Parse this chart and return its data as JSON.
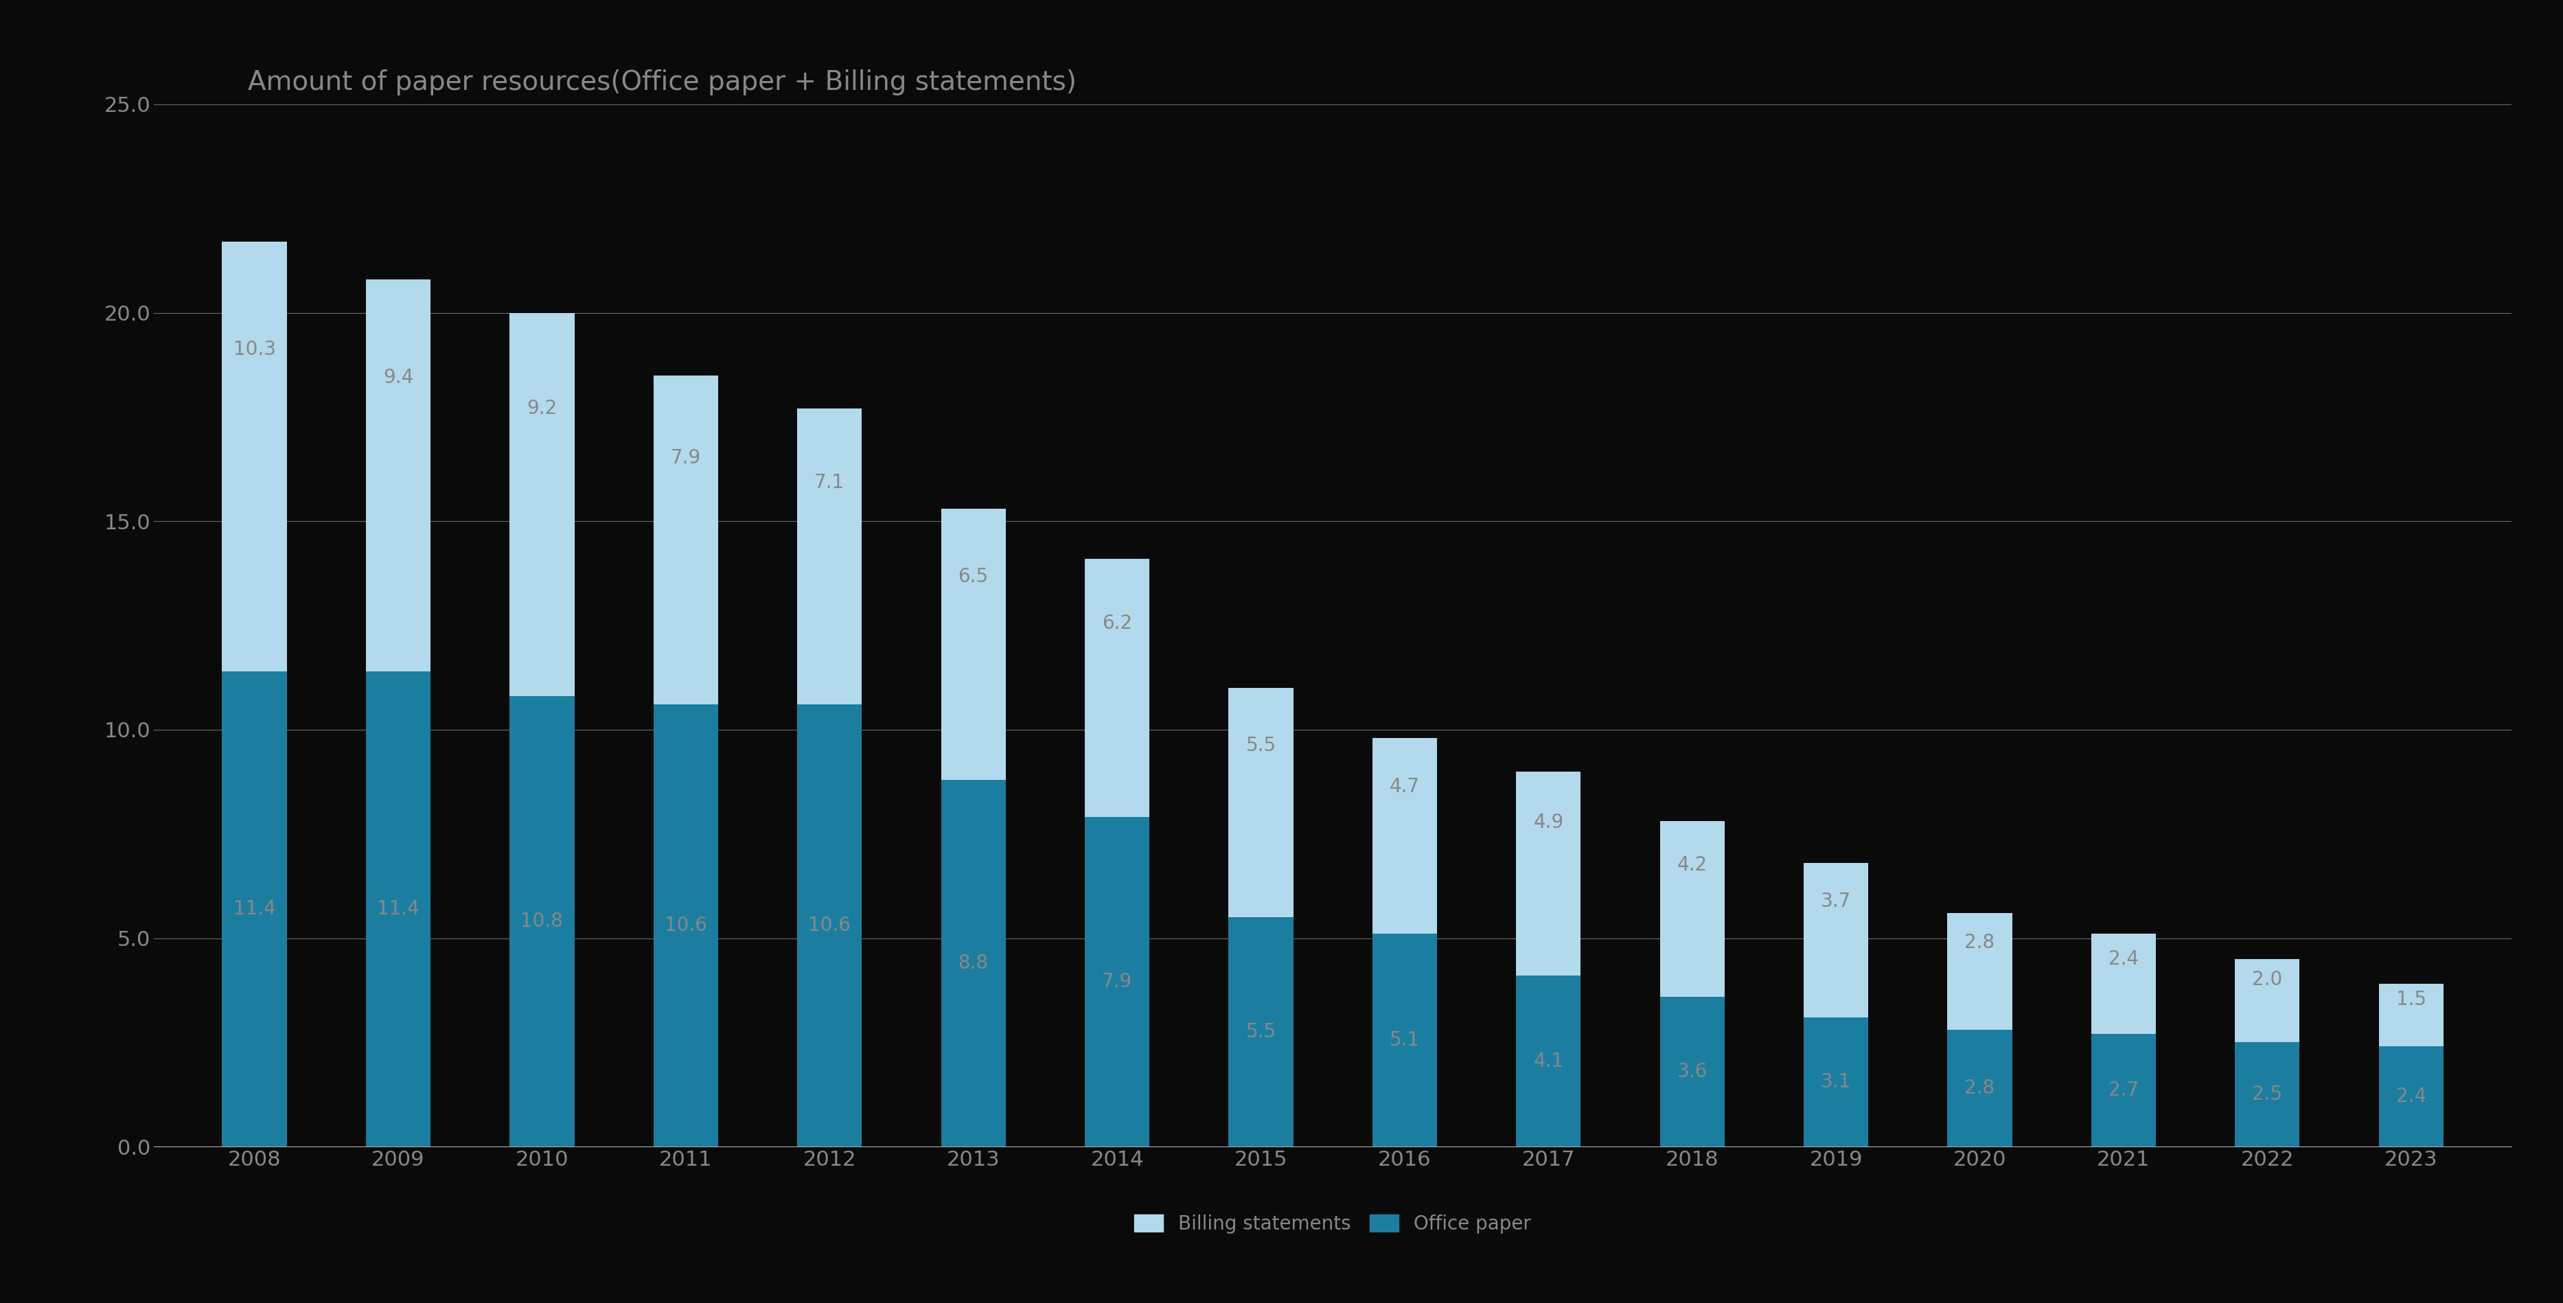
{
  "title": "Amount of paper resources(Office paper + Billing statements)",
  "years": [
    "2008",
    "2009",
    "2010",
    "2011",
    "2012",
    "2013",
    "2014",
    "2015",
    "2016",
    "2017",
    "2018",
    "2019",
    "2020",
    "2021",
    "2022",
    "2023"
  ],
  "office_paper": [
    11.4,
    11.4,
    10.8,
    10.6,
    10.6,
    8.8,
    7.9,
    5.5,
    5.1,
    4.1,
    3.6,
    3.1,
    2.8,
    2.7,
    2.5,
    2.4
  ],
  "billing_statements": [
    10.3,
    9.4,
    9.2,
    7.9,
    7.1,
    6.5,
    6.2,
    5.5,
    4.7,
    4.9,
    4.2,
    3.7,
    2.8,
    2.4,
    2.0,
    1.5
  ],
  "office_paper_color": "#1b7ea0",
  "billing_statements_color": "#b3d9ed",
  "background_color": "#0a0a0a",
  "grid_color": "#aaaaaa",
  "text_color": "#888888",
  "ylim": [
    0,
    25
  ],
  "yticks": [
    0.0,
    5.0,
    10.0,
    15.0,
    20.0,
    25.0
  ],
  "title_fontsize": 28,
  "tick_fontsize": 22,
  "label_fontsize": 20,
  "legend_fontsize": 20,
  "bar_width": 0.45
}
